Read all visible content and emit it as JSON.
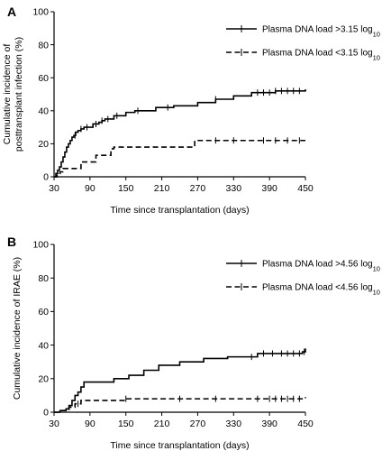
{
  "chart_data": [
    {
      "type": "line",
      "panel_label": "A",
      "xlabel": "Time since transplantation (days)",
      "ylabel_lines": [
        "Cumulative incidence of",
        "posttransplant infection (%)"
      ],
      "xlim": [
        30,
        450
      ],
      "ylim": [
        0,
        100
      ],
      "xticks": [
        "30",
        "90",
        "150",
        "210",
        "270",
        "330",
        "390",
        "450"
      ],
      "yticks": [
        "0",
        "20",
        "40",
        "60",
        "80",
        "100"
      ],
      "legend_position": "top-right",
      "series": [
        {
          "name": "Plasma DNA load >3.15 log",
          "name_sub": "10",
          "style": "solid",
          "x": [
            30,
            33,
            36,
            39,
            42,
            45,
            48,
            51,
            54,
            57,
            60,
            63,
            66,
            70,
            75,
            80,
            85,
            95,
            105,
            110,
            115,
            130,
            150,
            165,
            200,
            230,
            270,
            300,
            330,
            360,
            400,
            450
          ],
          "y": [
            0,
            2,
            4,
            6,
            9,
            12,
            15,
            18,
            20,
            22,
            24,
            25,
            27,
            28,
            29,
            30,
            30,
            32,
            33,
            34,
            35,
            37,
            39,
            40,
            42,
            43,
            45,
            47,
            49,
            51,
            52,
            53
          ],
          "censor_x": [
            65,
            75,
            85,
            100,
            110,
            120,
            135,
            170,
            220,
            300,
            370,
            380,
            390,
            400,
            410,
            420,
            430,
            440
          ]
        },
        {
          "name": "Plasma DNA load <3.15 log",
          "name_sub": "10",
          "style": "dashed",
          "x": [
            30,
            35,
            40,
            45,
            48,
            75,
            95,
            100,
            120,
            125,
            130,
            265,
            450
          ],
          "y": [
            0,
            2,
            3,
            5,
            5,
            9,
            9,
            13,
            13,
            17,
            18,
            22,
            22
          ],
          "censor_x": [
            300,
            330,
            380,
            400,
            420,
            440
          ]
        }
      ]
    },
    {
      "type": "line",
      "panel_label": "B",
      "xlabel": "Time since transplantation (days)",
      "ylabel_lines": [
        "Cumulative incidence of IRAE (%)"
      ],
      "xlim": [
        30,
        450
      ],
      "ylim": [
        0,
        100
      ],
      "xticks": [
        "30",
        "90",
        "150",
        "210",
        "270",
        "330",
        "390",
        "450"
      ],
      "yticks": [
        "0",
        "20",
        "40",
        "60",
        "80",
        "100"
      ],
      "legend_position": "top-right",
      "series": [
        {
          "name": "Plasma DNA load >4.56 log",
          "name_sub": "10",
          "style": "solid",
          "x": [
            30,
            40,
            50,
            55,
            60,
            65,
            70,
            75,
            80,
            105,
            130,
            155,
            180,
            205,
            240,
            280,
            320,
            370,
            445,
            450
          ],
          "y": [
            0,
            1,
            2,
            4,
            7,
            10,
            12,
            15,
            18,
            18,
            20,
            22,
            25,
            28,
            30,
            32,
            33,
            35,
            36,
            38
          ],
          "censor_x": [
            360,
            380,
            395,
            410,
            420,
            430,
            440,
            448
          ]
        },
        {
          "name": "Plasma DNA load <4.56 log",
          "name_sub": "10",
          "style": "dashed",
          "x": [
            30,
            40,
            55,
            65,
            75,
            145,
            150,
            400,
            450
          ],
          "y": [
            0,
            1,
            3,
            5,
            7,
            7,
            8,
            8,
            9
          ],
          "censor_x": [
            70,
            150,
            240,
            300,
            370,
            390,
            400,
            410,
            420,
            430,
            440
          ]
        }
      ]
    }
  ]
}
